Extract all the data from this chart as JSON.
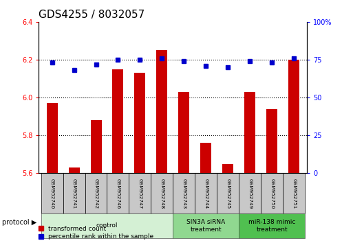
{
  "title": "GDS4255 / 8032057",
  "samples": [
    "GSM952740",
    "GSM952741",
    "GSM952742",
    "GSM952746",
    "GSM952747",
    "GSM952748",
    "GSM952743",
    "GSM952744",
    "GSM952745",
    "GSM952749",
    "GSM952750",
    "GSM952751"
  ],
  "transformed_count": [
    5.97,
    5.63,
    5.88,
    6.15,
    6.13,
    6.25,
    6.03,
    5.76,
    5.65,
    6.03,
    5.94,
    6.2
  ],
  "percentile_rank": [
    73,
    68,
    72,
    75,
    75,
    76,
    74,
    71,
    70,
    74,
    73,
    76
  ],
  "groups": [
    {
      "label": "control",
      "start": 0,
      "end": 6,
      "color": "#d4f0d4"
    },
    {
      "label": "SIN3A siRNA\ntreatment",
      "start": 6,
      "end": 9,
      "color": "#90d890"
    },
    {
      "label": "miR-138 mimic\ntreatment",
      "start": 9,
      "end": 12,
      "color": "#50c050"
    }
  ],
  "ylim_left": [
    5.6,
    6.4
  ],
  "ylim_right": [
    0,
    100
  ],
  "yticks_left": [
    5.6,
    5.8,
    6.0,
    6.2,
    6.4
  ],
  "yticks_right": [
    0,
    25,
    50,
    75,
    100
  ],
  "bar_color": "#cc0000",
  "dot_color": "#0000cc",
  "bar_bottom": 5.6,
  "title_fontsize": 11,
  "tick_fontsize": 7,
  "protocol_label": "protocol"
}
